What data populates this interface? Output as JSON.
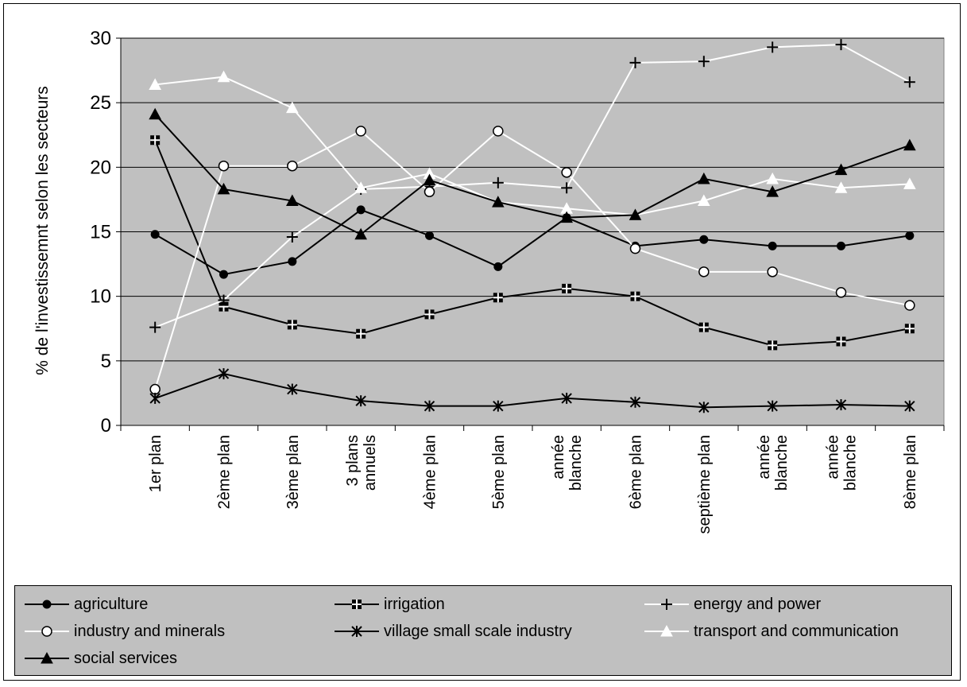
{
  "chart_data": {
    "type": "line",
    "ylabel": "% de l'investissemnt selon les secteurs",
    "ylim": [
      0,
      30
    ],
    "yticks": [
      0,
      5,
      10,
      15,
      20,
      25,
      30
    ],
    "grid": true,
    "legend_position": "bottom",
    "categories": [
      [
        "1er plan"
      ],
      [
        "2ème plan"
      ],
      [
        "3ème plan"
      ],
      [
        "3 plans",
        "annuels"
      ],
      [
        "4ème plan"
      ],
      [
        "5ème plan"
      ],
      [
        "année",
        "blanche"
      ],
      [
        "6ème plan"
      ],
      [
        "septième plan"
      ],
      [
        "année",
        "blanche"
      ],
      [
        "année",
        "blanche"
      ],
      [
        "8ème plan"
      ]
    ],
    "series": [
      {
        "name": "agriculture",
        "color": "#000000",
        "marker": "filled-circle",
        "values": [
          14.8,
          11.7,
          12.7,
          16.7,
          14.7,
          12.3,
          16.1,
          13.9,
          14.4,
          13.9,
          13.9,
          14.7
        ]
      },
      {
        "name": "irrigation",
        "color": "#000000",
        "marker": "square-cross",
        "values": [
          22.1,
          9.2,
          7.8,
          7.1,
          8.6,
          9.9,
          10.6,
          10.0,
          7.6,
          6.2,
          6.5,
          7.5
        ]
      },
      {
        "name": "energy and power",
        "color": "#ffffff",
        "marker": "plus",
        "values": [
          7.6,
          9.7,
          14.6,
          18.3,
          18.5,
          18.8,
          18.4,
          28.1,
          28.2,
          29.3,
          29.5,
          26.6
        ]
      },
      {
        "name": "industry and minerals",
        "color": "#ffffff",
        "marker": "open-circle",
        "values": [
          2.8,
          20.1,
          20.1,
          22.8,
          18.1,
          22.8,
          19.6,
          13.7,
          11.9,
          11.9,
          10.3,
          9.3
        ]
      },
      {
        "name": "village small scale industry",
        "color": "#000000",
        "marker": "star",
        "values": [
          2.1,
          4.0,
          2.8,
          1.9,
          1.5,
          1.5,
          2.1,
          1.8,
          1.4,
          1.5,
          1.6,
          1.5
        ]
      },
      {
        "name": "transport and communication",
        "color": "#ffffff",
        "marker": "open-triangle",
        "values": [
          26.4,
          27.0,
          24.6,
          18.4,
          19.5,
          17.3,
          16.8,
          16.3,
          17.4,
          19.1,
          18.4,
          18.7
        ]
      },
      {
        "name": "social services",
        "color": "#000000",
        "marker": "filled-triangle",
        "values": [
          24.1,
          18.3,
          17.4,
          14.8,
          19.0,
          17.3,
          16.1,
          16.3,
          19.1,
          18.1,
          19.8,
          21.7
        ]
      }
    ]
  }
}
